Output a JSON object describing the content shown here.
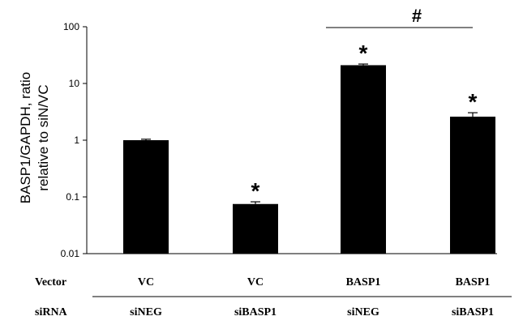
{
  "chart_data": {
    "type": "bar",
    "title": "",
    "ylabel": [
      "BASP1/GAPDH, ratio",
      "relative to siN/VC"
    ],
    "yscale": "log",
    "ylim": [
      0.01,
      100
    ],
    "yticks": [
      {
        "value": 100,
        "label": "100"
      },
      {
        "value": 10,
        "label": "10"
      },
      {
        "value": 1,
        "label": "1"
      },
      {
        "value": 0.1,
        "label": "0.1"
      },
      {
        "value": 0.01,
        "label": "0.01"
      }
    ],
    "grid": false,
    "bars": [
      {
        "vector": "VC",
        "sirna": "siNEG",
        "value": 1.0,
        "error": 0.04,
        "sig": ""
      },
      {
        "vector": "VC",
        "sirna": "siBASP1",
        "value": 0.075,
        "error": 0.007,
        "sig": "*"
      },
      {
        "vector": "BASP1",
        "sirna": "siNEG",
        "value": 21,
        "error": 1.0,
        "sig": "*"
      },
      {
        "vector": "BASP1",
        "sirna": "siBASP1",
        "value": 2.6,
        "error": 0.45,
        "sig": "*"
      }
    ],
    "bracket": {
      "from": 2,
      "to": 3,
      "label": "#"
    },
    "row_labels": {
      "vector": "Vector",
      "sirna": "siRNA"
    }
  }
}
